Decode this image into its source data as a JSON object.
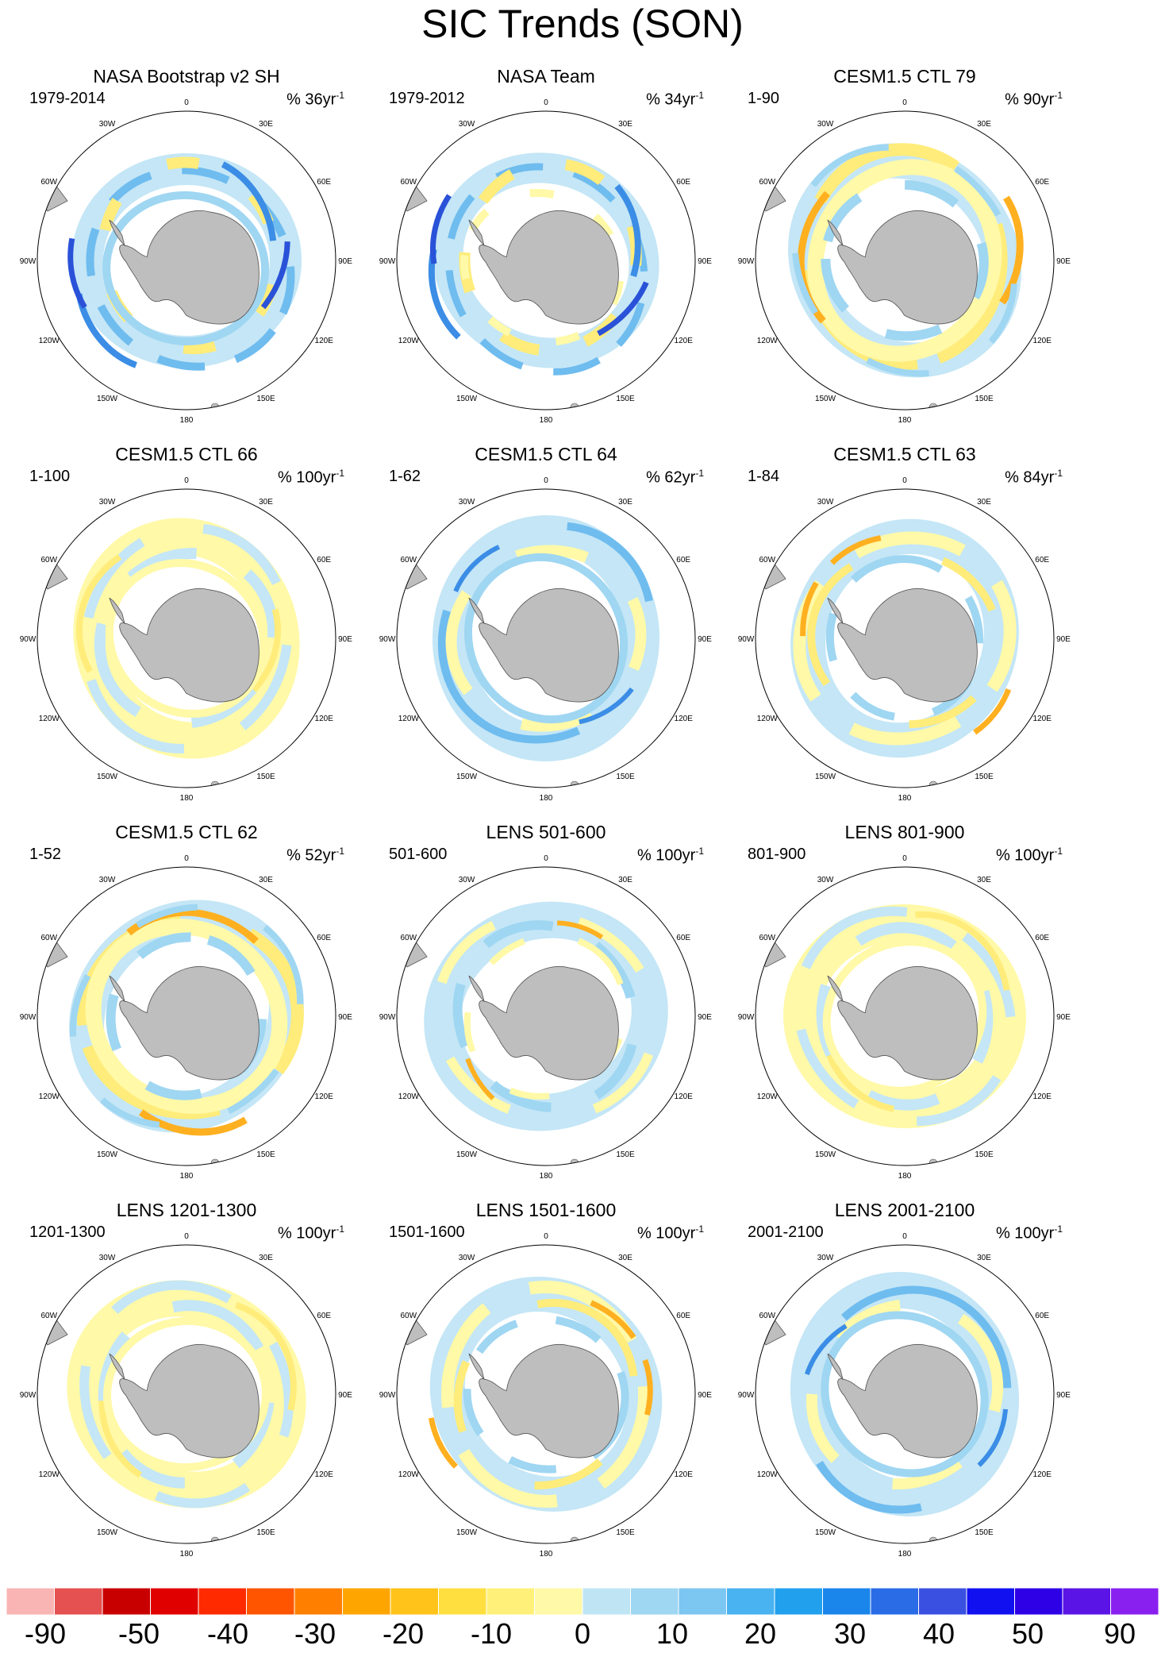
{
  "chart_data": {
    "type": "heatmap",
    "title": "SIC Trends (SON)",
    "projection": "south polar stereographic",
    "lon_labels": [
      "0",
      "30E",
      "60E",
      "90E",
      "120E",
      "150E",
      "180",
      "150W",
      "120W",
      "90W",
      "60W",
      "30W"
    ],
    "colorbar": {
      "ticks": [
        "-90",
        "-50",
        "-40",
        "-30",
        "-20",
        "-10",
        "0",
        "10",
        "20",
        "30",
        "40",
        "50",
        "90"
      ],
      "colors": [
        "#f9b4b4",
        "#e55050",
        "#c80000",
        "#e00000",
        "#ff2a00",
        "#ff5500",
        "#ff7f00",
        "#ffa500",
        "#ffc31a",
        "#ffdf40",
        "#fff07a",
        "#fff9a8",
        "#bfe5f5",
        "#9fd6f2",
        "#7cc6f2",
        "#49b2f0",
        "#21a0ee",
        "#1a85eb",
        "#2a6be6",
        "#3a50e0",
        "#1010f0",
        "#2e00e6",
        "#5a14e6",
        "#8a20f0"
      ],
      "units": "%"
    },
    "panels": [
      {
        "title": "NASA Bootstrap v2 SH",
        "period": "1979-2014",
        "unit_base": "% 36yr",
        "unit_exp": "-1",
        "pattern": "observed_a"
      },
      {
        "title": "NASA Team",
        "period": "1979-2012",
        "unit_base": "% 34yr",
        "unit_exp": "-1",
        "pattern": "observed_b"
      },
      {
        "title": "CESM1.5 CTL 79",
        "period": "1-90",
        "unit_base": "% 90yr",
        "unit_exp": "-1",
        "pattern": "warm_ring"
      },
      {
        "title": "CESM1.5 CTL 66",
        "period": "1-100",
        "unit_base": "% 100yr",
        "unit_exp": "-1",
        "pattern": "mixed_yellow"
      },
      {
        "title": "CESM1.5 CTL 64",
        "period": "1-62",
        "unit_base": "% 62yr",
        "unit_exp": "-1",
        "pattern": "blue_ring"
      },
      {
        "title": "CESM1.5 CTL 63",
        "period": "1-84",
        "unit_base": "% 84yr",
        "unit_exp": "-1",
        "pattern": "warm_bands"
      },
      {
        "title": "CESM1.5 CTL 62",
        "period": "1-52",
        "unit_base": "% 52yr",
        "unit_exp": "-1",
        "pattern": "warm_ring"
      },
      {
        "title": "LENS 501-600",
        "period": "501-600",
        "unit_base": "% 100yr",
        "unit_exp": "-1",
        "pattern": "blue_mixed"
      },
      {
        "title": "LENS 801-900",
        "period": "801-900",
        "unit_base": "% 100yr",
        "unit_exp": "-1",
        "pattern": "mixed_yellow"
      },
      {
        "title": "LENS 1201-1300",
        "period": "1201-1300",
        "unit_base": "% 100yr",
        "unit_exp": "-1",
        "pattern": "mixed_yellow"
      },
      {
        "title": "LENS 1501-1600",
        "period": "1501-1600",
        "unit_base": "% 100yr",
        "unit_exp": "-1",
        "pattern": "warm_bands"
      },
      {
        "title": "LENS 2001-2100",
        "period": "2001-2100",
        "unit_base": "% 100yr",
        "unit_exp": "-1",
        "pattern": "blue_ring"
      }
    ]
  }
}
